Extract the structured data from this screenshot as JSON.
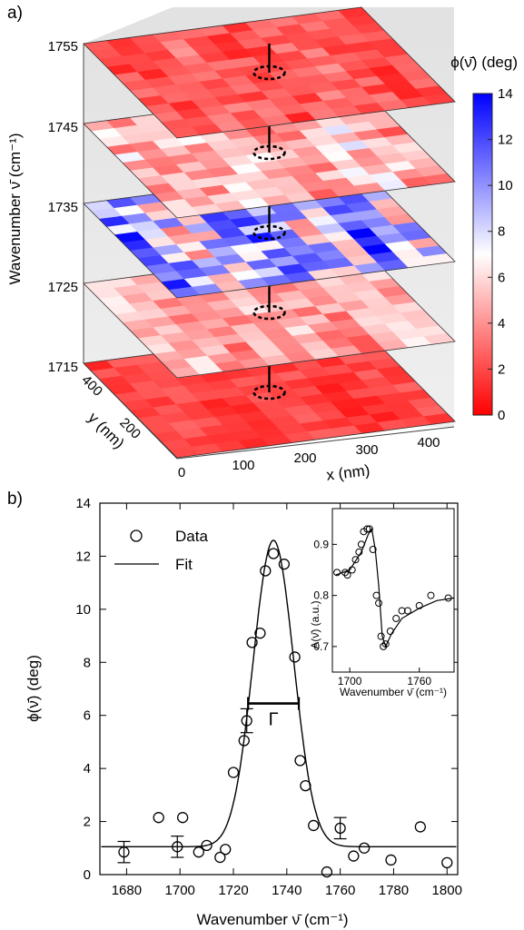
{
  "panel_a": {
    "label": "a)",
    "z_axis_label": "Wavenumber ν̄ (cm⁻¹)",
    "z_ticks": [
      "1755",
      "1745",
      "1735",
      "1725",
      "1715"
    ],
    "x_axis_label": "x (nm)",
    "x_ticks": [
      "0",
      "100",
      "200",
      "300",
      "400"
    ],
    "y_axis_label": "y (nm)",
    "y_ticks": [
      "0",
      "200",
      "400"
    ],
    "colorbar_title": "ϕ(ν̄) (deg)",
    "colorbar_ticks": [
      "14",
      "12",
      "10",
      "8",
      "6",
      "4",
      "2",
      "0"
    ],
    "colorbar_range": [
      0,
      14
    ],
    "colors": {
      "low": "#ff0000",
      "mid": "#ffffff",
      "high": "#0000ff"
    },
    "slices": [
      {
        "wavenumber": 1755,
        "mean_phase": 2.5,
        "variation": 1.2
      },
      {
        "wavenumber": 1745,
        "mean_phase": 5.0,
        "variation": 2.2
      },
      {
        "wavenumber": 1735,
        "mean_phase": 9.0,
        "variation": 4.0
      },
      {
        "wavenumber": 1725,
        "mean_phase": 4.5,
        "variation": 1.6
      },
      {
        "wavenumber": 1715,
        "mean_phase": 1.8,
        "variation": 0.8
      }
    ]
  },
  "panel_b": {
    "label": "b)",
    "legend": {
      "data": "Data",
      "fit": "Fit"
    },
    "width_label": "Γ",
    "inset": {
      "ylabel": "A(ν̄) (a.u.)",
      "xlabel": "Wavenumber ν̄ (cm⁻¹)",
      "x_ticks": [
        "1700",
        "1760"
      ],
      "y_ticks": [
        "0.9",
        "0.8",
        "0.7"
      ]
    }
  },
  "chart_data": [
    {
      "type": "scatter",
      "title": "",
      "xlabel": "Wavenumber ν̄ (cm⁻¹)",
      "ylabel": "ϕ(ν̄) (deg)",
      "xlim": [
        1670,
        1804
      ],
      "ylim": [
        0,
        14
      ],
      "x_ticks": [
        1680,
        1700,
        1720,
        1740,
        1760,
        1780,
        1800
      ],
      "y_ticks": [
        0,
        2,
        4,
        6,
        8,
        10,
        12,
        14
      ],
      "legend": "top-left",
      "series": [
        {
          "name": "Data",
          "points": [
            [
              1679,
              0.85
            ],
            [
              1692,
              2.15
            ],
            [
              1699,
              1.05
            ],
            [
              1701,
              2.15
            ],
            [
              1707,
              0.85
            ],
            [
              1710,
              1.1
            ],
            [
              1715,
              0.65
            ],
            [
              1717,
              0.95
            ],
            [
              1720,
              3.85
            ],
            [
              1724,
              5.05
            ],
            [
              1725,
              5.8
            ],
            [
              1727,
              8.75
            ],
            [
              1730,
              9.1
            ],
            [
              1732,
              11.45
            ],
            [
              1735,
              12.1
            ],
            [
              1739,
              11.7
            ],
            [
              1743,
              8.2
            ],
            [
              1745,
              4.3
            ],
            [
              1747,
              3.35
            ],
            [
              1750,
              1.85
            ],
            [
              1755,
              0.1
            ],
            [
              1760,
              1.75
            ],
            [
              1765,
              0.7
            ],
            [
              1769,
              1.0
            ],
            [
              1779,
              0.55
            ],
            [
              1790,
              1.8
            ],
            [
              1800,
              0.45
            ]
          ],
          "error_bars": [
            {
              "x": 1679,
              "y": 0.85,
              "err": 0.4
            },
            {
              "x": 1699,
              "y": 1.05,
              "err": 0.4
            },
            {
              "x": 1725,
              "y": 5.8,
              "err": 0.45
            },
            {
              "x": 1760,
              "y": 1.75,
              "err": 0.4
            }
          ]
        },
        {
          "name": "Fit",
          "model": "gaussian",
          "baseline": 1.05,
          "amplitude": 11.55,
          "center": 1735,
          "sigma": 7.6
        }
      ],
      "annotations": [
        {
          "text": "Γ",
          "x_from": 1725.5,
          "x_to": 1744.5,
          "y": 6.45
        }
      ]
    },
    {
      "type": "scatter",
      "title": "inset",
      "xlabel": "Wavenumber ν̄ (cm⁻¹)",
      "ylabel": "A(ν̄) (a.u.)",
      "xlim": [
        1685,
        1790
      ],
      "ylim": [
        0.65,
        0.97
      ],
      "x_ticks": [
        1700,
        1760
      ],
      "y_ticks": [
        0.7,
        0.8,
        0.9
      ],
      "series": [
        {
          "name": "",
          "points": [
            [
              1689,
              0.845
            ],
            [
              1696,
              0.845
            ],
            [
              1698,
              0.84
            ],
            [
              1702,
              0.85
            ],
            [
              1705,
              0.87
            ],
            [
              1708,
              0.885
            ],
            [
              1710,
              0.9
            ],
            [
              1712,
              0.925
            ],
            [
              1715,
              0.93
            ],
            [
              1717,
              0.93
            ],
            [
              1720,
              0.89
            ],
            [
              1723,
              0.8
            ],
            [
              1725,
              0.785
            ],
            [
              1727,
              0.72
            ],
            [
              1729,
              0.7
            ],
            [
              1731,
              0.705
            ],
            [
              1735,
              0.73
            ],
            [
              1740,
              0.755
            ],
            [
              1745,
              0.77
            ],
            [
              1750,
              0.77
            ],
            [
              1760,
              0.78
            ],
            [
              1770,
              0.8
            ],
            [
              1785,
              0.795
            ]
          ]
        },
        {
          "name": "",
          "model": "fit-curve",
          "points": [
            [
              1688,
              0.84
            ],
            [
              1700,
              0.85
            ],
            [
              1710,
              0.885
            ],
            [
              1716,
              0.92
            ],
            [
              1719,
              0.93
            ],
            [
              1722,
              0.89
            ],
            [
              1725,
              0.82
            ],
            [
              1728,
              0.72
            ],
            [
              1731,
              0.7
            ],
            [
              1736,
              0.725
            ],
            [
              1745,
              0.755
            ],
            [
              1760,
              0.775
            ],
            [
              1775,
              0.79
            ],
            [
              1790,
              0.795
            ]
          ]
        }
      ]
    }
  ]
}
